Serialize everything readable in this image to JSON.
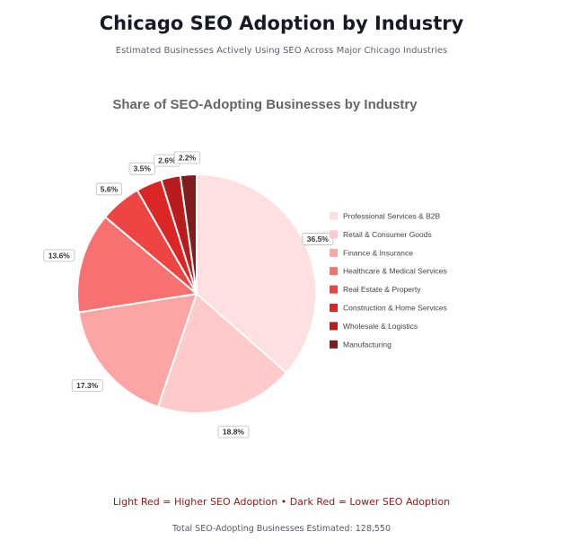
{
  "header": {
    "title": "Chicago SEO Adoption by Industry",
    "subtitle": "Estimated Businesses Actively Using SEO Across Major Chicago Industries"
  },
  "chart_data": {
    "type": "pie",
    "title": "Share of SEO-Adopting Businesses by Industry",
    "legend_position": "right",
    "categories": [
      "Professional Services & B2B",
      "Retail & Consumer Goods",
      "Finance & Insurance",
      "Healthcare & Medical Services",
      "Real Estate & Property",
      "Construction & Home Services",
      "Wholesale & Logistics",
      "Manufacturing"
    ],
    "values": [
      36.5,
      18.8,
      17.3,
      13.6,
      5.6,
      3.5,
      2.6,
      2.2
    ],
    "labels": [
      "36.5%",
      "18.8%",
      "17.3%",
      "13.6%",
      "5.6%",
      "3.5%",
      "2.6%",
      "2.2%"
    ],
    "colors": [
      "#ffe0e0",
      "#ffcaca",
      "#fca5a5",
      "#f87171",
      "#ef4444",
      "#dc2626",
      "#b91c1c",
      "#7f1d1d"
    ]
  },
  "footer": {
    "note": "Light Red = Higher SEO Adoption • Dark Red = Lower SEO Adoption",
    "total": "Total SEO-Adopting Businesses Estimated: 128,550"
  }
}
